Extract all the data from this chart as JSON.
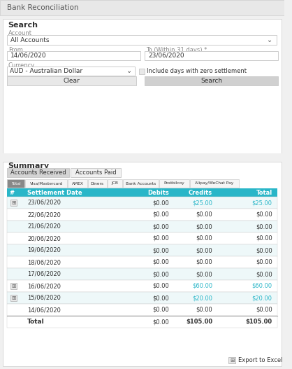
{
  "title": "Bank Reconciliation",
  "title_bg": "#e8e8e8",
  "title_color": "#555555",
  "bg_color": "#f0f0f0",
  "section_bg": "#ffffff",
  "search_label": "Search",
  "account_label": "Account",
  "account_value": "All Accounts",
  "from_label": "From",
  "from_value": "14/06/2020",
  "to_label": "To (Within 31 days) *",
  "to_value": "23/06/2020",
  "currency_label": "Currency",
  "currency_value": "AUD - Australian Dollar",
  "checkbox_label": "Include days with zero settlement",
  "btn_clear": "Clear",
  "btn_search": "Search",
  "summary_label": "Summary",
  "tab1": "Accounts Received",
  "tab2": "Accounts Paid",
  "tab_active_bg": "#d4d4d4",
  "tab_inactive_bg": "#f0f0f0",
  "filter_tabs": [
    "Total",
    "Visa/Mastercard",
    "AMEX",
    "Diners",
    "JCB",
    "Bank Accounts",
    "Postbilcoy",
    "Alipay/WeChat Pay"
  ],
  "filter_active": "Total",
  "filter_active_bg": "#888888",
  "filter_active_fg": "#ffffff",
  "filter_inactive_bg": "#f5f5f5",
  "filter_inactive_fg": "#333333",
  "header_bg": "#29b6c8",
  "header_fg": "#ffffff",
  "header_cols": [
    "#",
    "Settlement Date",
    "Debits",
    "Credits",
    "Total"
  ],
  "row_alt_bg": "#eef8f9",
  "row_bg": "#ffffff",
  "rows": [
    {
      "icon": true,
      "date": "23/06/2020",
      "debits": "$0.00",
      "credits": "$25.00",
      "total": "$25.00",
      "link": true
    },
    {
      "icon": false,
      "date": "22/06/2020",
      "debits": "$0.00",
      "credits": "$0.00",
      "total": "$0.00",
      "link": false
    },
    {
      "icon": false,
      "date": "21/06/2020",
      "debits": "$0.00",
      "credits": "$0.00",
      "total": "$0.00",
      "link": false
    },
    {
      "icon": false,
      "date": "20/06/2020",
      "debits": "$0.00",
      "credits": "$0.00",
      "total": "$0.00",
      "link": false
    },
    {
      "icon": false,
      "date": "19/06/2020",
      "debits": "$0.00",
      "credits": "$0.00",
      "total": "$0.00",
      "link": false
    },
    {
      "icon": false,
      "date": "18/06/2020",
      "debits": "$0.00",
      "credits": "$0.00",
      "total": "$0.00",
      "link": false
    },
    {
      "icon": false,
      "date": "17/06/2020",
      "debits": "$0.00",
      "credits": "$0.00",
      "total": "$0.00",
      "link": false
    },
    {
      "icon": true,
      "date": "16/06/2020",
      "debits": "$0.00",
      "credits": "$60.00",
      "total": "$60.00",
      "link": true
    },
    {
      "icon": true,
      "date": "15/06/2020",
      "debits": "$0.00",
      "credits": "$20.00",
      "total": "$20.00",
      "link": true
    },
    {
      "icon": false,
      "date": "14/06/2020",
      "debits": "$0.00",
      "credits": "$0.00",
      "total": "$0.00",
      "link": false
    }
  ],
  "total_row": {
    "label": "Total",
    "debits": "$0.00",
    "credits": "$105.00",
    "total": "$105.00"
  },
  "export_label": "Export to Excel",
  "link_color": "#29b6c8",
  "text_color": "#333333",
  "border_color": "#cccccc",
  "label_color": "#888888"
}
